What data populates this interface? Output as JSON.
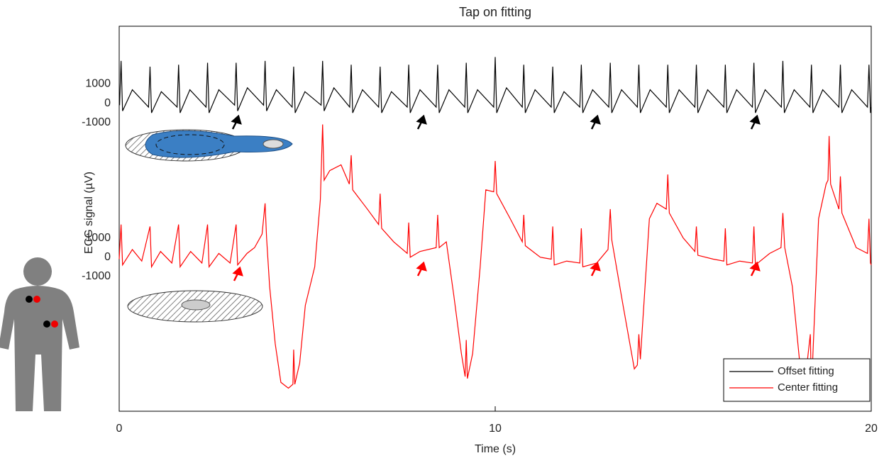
{
  "chart_data": [
    {
      "type": "line",
      "title": "Tap on fitting",
      "x_label": "Time (s)",
      "y_label": "ECG signal (µV)",
      "xlim": [
        0,
        20
      ],
      "xticks": [
        0,
        10,
        20
      ],
      "ylim": [
        -16000,
        4000
      ],
      "yticks": [
        -1000,
        0,
        1000
      ],
      "legend": "lower right",
      "series": [
        {
          "name": "Offset fitting",
          "color": "#000000",
          "x": [
            0.01,
            0.05,
            0.09,
            0.35,
            0.78,
            0.82,
            0.86,
            1.12,
            1.54,
            1.58,
            1.62,
            1.88,
            2.31,
            2.35,
            2.39,
            2.65,
            3.07,
            3.11,
            3.15,
            3.41,
            3.84,
            3.88,
            3.92,
            4.18,
            4.6,
            4.64,
            4.68,
            4.94,
            5.37,
            5.41,
            5.45,
            5.71,
            6.13,
            6.17,
            6.21,
            6.47,
            6.9,
            6.94,
            6.98,
            7.24,
            7.66,
            7.7,
            7.74,
            8.0,
            8.43,
            8.47,
            8.51,
            8.77,
            9.19,
            9.23,
            9.27,
            9.53,
            9.96,
            10.0,
            10.04,
            10.3,
            10.72,
            10.76,
            10.8,
            11.06,
            11.49,
            11.53,
            11.57,
            11.83,
            12.25,
            12.29,
            12.33,
            12.59,
            13.02,
            13.06,
            13.1,
            13.36,
            13.78,
            13.82,
            13.86,
            14.12,
            14.55,
            14.59,
            14.63,
            14.89,
            15.31,
            15.35,
            15.39,
            15.65,
            16.08,
            16.12,
            16.16,
            16.42,
            16.84,
            16.88,
            16.92,
            17.18,
            17.61,
            17.65,
            17.69,
            17.95,
            18.37,
            18.41,
            18.45,
            18.71,
            19.14,
            19.18,
            19.22,
            19.48,
            19.9,
            19.94,
            19.98,
            20
          ],
          "values": [
            -100,
            2200,
            -400,
            700,
            -200,
            1900,
            -500,
            600,
            -200,
            2000,
            -500,
            700,
            -200,
            2100,
            -500,
            700,
            -100,
            2100,
            -400,
            800,
            -100,
            2200,
            -400,
            700,
            -200,
            1900,
            -500,
            600,
            -100,
            2200,
            -400,
            800,
            -200,
            2000,
            -500,
            700,
            -200,
            1900,
            -500,
            600,
            -200,
            2000,
            -500,
            700,
            -200,
            2000,
            -500,
            700,
            -200,
            2100,
            -500,
            700,
            -200,
            2400,
            -500,
            800,
            -200,
            2000,
            -500,
            700,
            -200,
            1900,
            -500,
            600,
            -200,
            2000,
            -500,
            700,
            -200,
            2100,
            -500,
            700,
            -200,
            2000,
            -500,
            700,
            -200,
            2000,
            -500,
            700,
            -200,
            2000,
            -500,
            700,
            -200,
            2000,
            -500,
            700,
            -200,
            2100,
            -500,
            700,
            -200,
            2200,
            -500,
            700,
            -200,
            2000,
            -500,
            700,
            -200,
            2000,
            -500,
            700,
            -200,
            2000,
            -500,
            -200
          ]
        }
      ]
    },
    {
      "type": "line",
      "ylim": [
        -8000,
        12000
      ],
      "yticks": [
        -1000,
        0,
        1000
      ],
      "series": [
        {
          "name": "Center fitting",
          "color": "#ff0000",
          "x": [
            0,
            0.05,
            0.09,
            0.35,
            0.6,
            0.82,
            0.86,
            1.1,
            1.4,
            1.58,
            1.62,
            1.9,
            2.2,
            2.35,
            2.39,
            2.65,
            2.95,
            3.11,
            3.15,
            3.4,
            3.6,
            3.8,
            3.88,
            3.92,
            4.0,
            4.15,
            4.3,
            4.5,
            4.62,
            4.64,
            4.67,
            4.8,
            4.95,
            5.2,
            5.35,
            5.41,
            5.45,
            5.6,
            5.9,
            6.12,
            6.17,
            6.21,
            6.6,
            6.9,
            6.94,
            6.98,
            7.3,
            7.66,
            7.7,
            7.74,
            8.0,
            8.43,
            8.47,
            8.51,
            8.7,
            8.9,
            9.1,
            9.2,
            9.23,
            9.26,
            9.4,
            9.6,
            9.75,
            9.96,
            10.0,
            10.04,
            10.4,
            10.72,
            10.76,
            10.8,
            11.2,
            11.49,
            11.53,
            11.57,
            11.9,
            12.25,
            12.29,
            12.33,
            12.7,
            13.0,
            13.06,
            13.1,
            13.4,
            13.7,
            13.78,
            13.82,
            13.86,
            14.1,
            14.3,
            14.55,
            14.59,
            14.63,
            15.0,
            15.31,
            15.35,
            15.39,
            15.8,
            16.08,
            16.12,
            16.16,
            16.5,
            16.84,
            16.88,
            16.92,
            17.3,
            17.6,
            17.65,
            17.7,
            17.9,
            18.1,
            18.3,
            18.38,
            18.41,
            18.45,
            18.6,
            18.8,
            18.85,
            18.88,
            18.92,
            19.14,
            19.18,
            19.22,
            19.6,
            19.9,
            19.94,
            19.98,
            20
          ],
          "values": [
            -100,
            1700,
            -400,
            400,
            -200,
            1600,
            -500,
            300,
            -300,
            1700,
            -500,
            300,
            -300,
            1700,
            -500,
            200,
            -300,
            1700,
            -400,
            200,
            500,
            1200,
            2800,
            1000,
            -1500,
            -4500,
            -6500,
            -6800,
            -6600,
            -4800,
            -6600,
            -5500,
            -2500,
            -500,
            3000,
            6900,
            4000,
            4500,
            4800,
            3800,
            5300,
            3500,
            2500,
            1700,
            3300,
            1500,
            800,
            200,
            1800,
            0,
            300,
            500,
            2200,
            500,
            800,
            -2000,
            -5000,
            -6200,
            -4300,
            -6300,
            -5000,
            -500,
            3500,
            3400,
            5000,
            3300,
            2000,
            800,
            2200,
            600,
            0,
            -100,
            1600,
            -400,
            -200,
            -300,
            1500,
            -500,
            -300,
            400,
            2500,
            900,
            -2500,
            -5800,
            -5600,
            -4000,
            -5300,
            2000,
            2800,
            2500,
            4300,
            2300,
            1000,
            300,
            1600,
            100,
            -100,
            -200,
            1500,
            -400,
            -200,
            -300,
            1600,
            -400,
            200,
            500,
            2300,
            500,
            -1500,
            -5500,
            -5400,
            -4000,
            -6900,
            -5000,
            2000,
            3800,
            4000,
            6300,
            3800,
            2500,
            4200,
            2300,
            500,
            200,
            2000,
            -300,
            -400
          ]
        }
      ]
    }
  ]
}
